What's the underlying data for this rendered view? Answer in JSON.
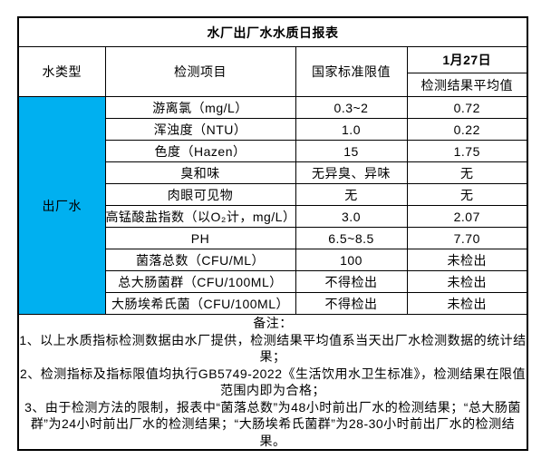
{
  "table": {
    "title": "水厂出厂水水质日报表",
    "header": {
      "water_type": "水类型",
      "test_item": "检测项目",
      "national_standard": "国家标准限值",
      "date": "1月27日",
      "result_avg": "检测结果平均值"
    },
    "water_type_value": "出厂水",
    "water_type_bg": "#00b0f0",
    "rows": [
      {
        "item": "游离氯（mg/L）",
        "limit": "0.3~2",
        "result": "0.72"
      },
      {
        "item": "浑浊度（NTU）",
        "limit": "1.0",
        "result": "0.22"
      },
      {
        "item": "色度（Hazen）",
        "limit": "15",
        "result": "1.75"
      },
      {
        "item": "臭和味",
        "limit": "无异臭、异味",
        "result": "无"
      },
      {
        "item": "肉眼可见物",
        "limit": "无",
        "result": "无"
      },
      {
        "item": "高锰酸盐指数（以O₂计，mg/L）",
        "limit": "3.0",
        "result": "2.07"
      },
      {
        "item": "PH",
        "limit": "6.5~8.5",
        "result": "7.70"
      },
      {
        "item": "菌落总数（CFU/ML）",
        "limit": "100",
        "result": "未检出"
      },
      {
        "item": "总大肠菌群（CFU/100ML）",
        "limit": "不得检出",
        "result": "未检出"
      },
      {
        "item": "大肠埃希氏菌（CFU/100ML）",
        "limit": "不得检出",
        "result": "未检出"
      }
    ],
    "notes": [
      "备注：",
      "1、以上水质指标检测数据由水厂提供，检测结果平均值系当天出厂水检测数据的统计结果；",
      "2、检测指标及指标限值均执行GB5749-2022《生活饮用水卫生标准》，检测结果在限值范围内即为合格；",
      "3、由于检测方法的限制，报表中“菌落总数”为48小时前出厂水的检测结果；“总大肠菌群”为24小时前出厂水的检测结果；“大肠埃希氏菌群”为28-30小时前出厂水的检测结果。"
    ]
  }
}
